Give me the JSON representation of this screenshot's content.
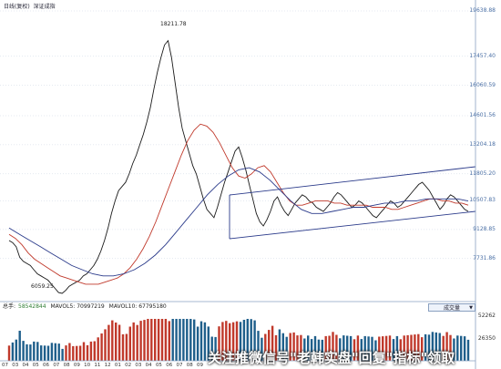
{
  "header": {
    "period_label": "日线(复权)",
    "index_name": "深证成指"
  },
  "price_axis": {
    "ticks": [
      {
        "label": "19638.88",
        "value": 19638.88
      },
      {
        "label": "17457.40",
        "value": 17457.4
      },
      {
        "label": "16060.59",
        "value": 16060.59
      },
      {
        "label": "14601.56",
        "value": 14601.56
      },
      {
        "label": "13204.18",
        "value": 13204.18
      },
      {
        "label": "11805.20",
        "value": 11805.2
      },
      {
        "label": "10507.83",
        "value": 10507.83
      },
      {
        "label": "9128.85",
        "value": 9128.85
      },
      {
        "label": "7731.86",
        "value": 7731.86
      }
    ]
  },
  "annotations": {
    "high": {
      "label": "18211.78"
    },
    "low": {
      "label": "6059.25"
    }
  },
  "volume_panel": {
    "legend": {
      "prefix": "总手:",
      "total": "58542844",
      "mavol5": "MAVOL5: 70997219",
      "mavol10": "MAVOL10: 67795180"
    },
    "button_label": "成交量",
    "axis_ticks": [
      {
        "label": "52262",
        "value": 52262
      },
      {
        "label": "26350",
        "value": 26350
      }
    ]
  },
  "x_axis": {
    "labels": [
      "07",
      "03",
      "04",
      "05",
      "06",
      "07",
      "08",
      "09",
      "10",
      "11",
      "12",
      "01",
      "02",
      "03",
      "04",
      "05",
      "06",
      "07",
      "08",
      "09"
    ]
  },
  "watermark": "关注推微信号\"老韩实盘\"回复\"指标\"领取",
  "colors": {
    "price_line": "#1a1a1a",
    "ma_short": "#c0392b",
    "ma_long": "#2a3a8a",
    "channel": "#2a3a8a",
    "axis_text": "#4a6fa5",
    "volume_up": "#c0392b",
    "volume_down": "#1f5f8b",
    "grid": "#c9d3e2"
  },
  "chart_data": {
    "type": "line",
    "title": "深证成指",
    "series": [
      {
        "name": "price",
        "values": [
          8600,
          8500,
          8300,
          7800,
          7600,
          7500,
          7400,
          7200,
          7000,
          6900,
          6800,
          6700,
          6500,
          6300,
          6100,
          6059,
          6200,
          6400,
          6500,
          6600,
          6700,
          6900,
          7000,
          7200,
          7400,
          7700,
          8100,
          8600,
          9200,
          9900,
          10500,
          11000,
          11200,
          11400,
          11800,
          12300,
          12700,
          13200,
          13700,
          14300,
          15000,
          15900,
          16700,
          17400,
          18000,
          18211,
          17400,
          16200,
          15000,
          14000,
          13400,
          12800,
          12200,
          11800,
          11200,
          10600,
          10100,
          9900,
          9700,
          10200,
          10800,
          11400,
          11900,
          12400,
          12900,
          13100,
          12600,
          12000,
          11300,
          10600,
          9900,
          9500,
          9300,
          9600,
          10000,
          10500,
          10700,
          10300,
          10000,
          9800,
          10100,
          10400,
          10600,
          10800,
          10700,
          10500,
          10400,
          10200,
          10100,
          10000,
          10200,
          10400,
          10700,
          10900,
          10800,
          10600,
          10400,
          10200,
          10300,
          10500,
          10400,
          10200,
          10000,
          9800,
          9700,
          9900,
          10100,
          10300,
          10500,
          10400,
          10200,
          10300,
          10500,
          10700,
          10900,
          11100,
          11300,
          11400,
          11200,
          11000,
          10700,
          10400,
          10100,
          10300,
          10600,
          10800,
          10700,
          10500,
          10300,
          10100,
          10000
        ]
      },
      {
        "name": "ma_short",
        "values": [
          8900,
          8700,
          8400,
          8000,
          7700,
          7500,
          7300,
          7100,
          6900,
          6800,
          6700,
          6600,
          6500,
          6500,
          6500,
          6600,
          6700,
          6800,
          7000,
          7300,
          7700,
          8200,
          8800,
          9500,
          10300,
          11100,
          11900,
          12700,
          13400,
          13900,
          14200,
          14100,
          13800,
          13300,
          12700,
          12100,
          11700,
          11600,
          11800,
          12100,
          12200,
          11900,
          11400,
          10900,
          10500,
          10300,
          10300,
          10400,
          10500,
          10500,
          10500,
          10400,
          10400,
          10300,
          10300,
          10300,
          10300,
          10200,
          10200,
          10200,
          10100,
          10100,
          10200,
          10300,
          10400,
          10500,
          10600,
          10600,
          10500,
          10500,
          10400,
          10400,
          10300
        ]
      },
      {
        "name": "ma_long",
        "values": [
          9200,
          8900,
          8600,
          8300,
          8000,
          7700,
          7400,
          7200,
          7000,
          6900,
          6900,
          7000,
          7200,
          7500,
          7900,
          8400,
          9000,
          9600,
          10200,
          10800,
          11300,
          11700,
          12000,
          12100,
          11900,
          11500,
          11000,
          10500,
          10100,
          9900,
          9900,
          10000,
          10100,
          10200,
          10200,
          10300,
          10400,
          10400,
          10500,
          10500,
          10600,
          10600,
          10600,
          10600,
          10500
        ]
      }
    ],
    "ylim": [
      6059.25,
      19638.88
    ],
    "xlabel": "",
    "ylabel": ""
  }
}
